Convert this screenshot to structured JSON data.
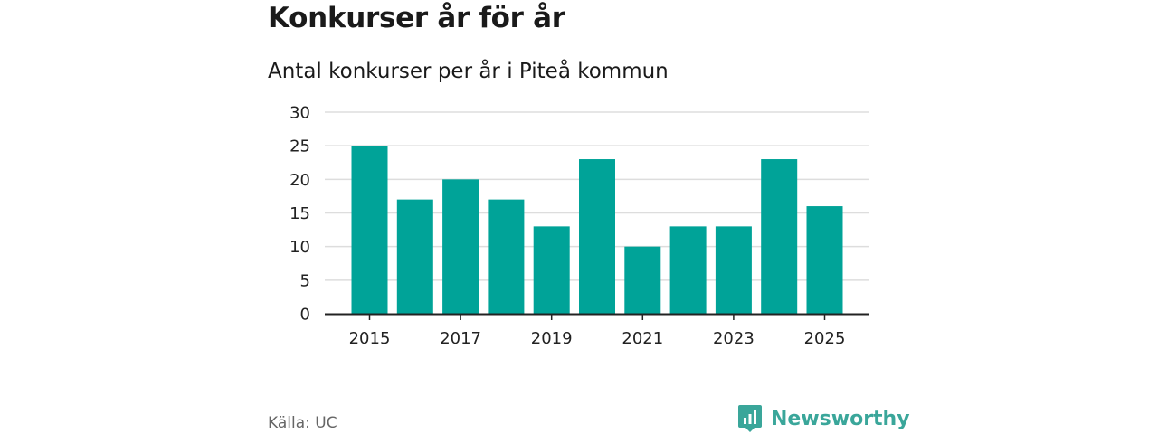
{
  "title": "Konkurser år för år",
  "subtitle": "Antal konkurser per år i Piteå kommun",
  "source": "Källa: UC",
  "brand": "Newsworthy",
  "colors": {
    "bar": "#00a398",
    "grid": "#dddddd",
    "axis": "#222222",
    "brand": "#3aa69a"
  },
  "chart_data": {
    "type": "bar",
    "title": "Konkurser år för år",
    "subtitle": "Antal konkurser per år i Piteå kommun",
    "xlabel": "",
    "ylabel": "",
    "categories": [
      "2015",
      "2016",
      "2017",
      "2018",
      "2019",
      "2020",
      "2021",
      "2022",
      "2023",
      "2024",
      "2025"
    ],
    "values": [
      25,
      17,
      20,
      17,
      13,
      23,
      10,
      13,
      13,
      23,
      16
    ],
    "x_tick_labels": [
      "2015",
      "2017",
      "2019",
      "2021",
      "2023",
      "2025"
    ],
    "y_ticks": [
      0,
      5,
      10,
      15,
      20,
      25,
      30
    ],
    "ylim": [
      0,
      30
    ],
    "grid": true
  }
}
